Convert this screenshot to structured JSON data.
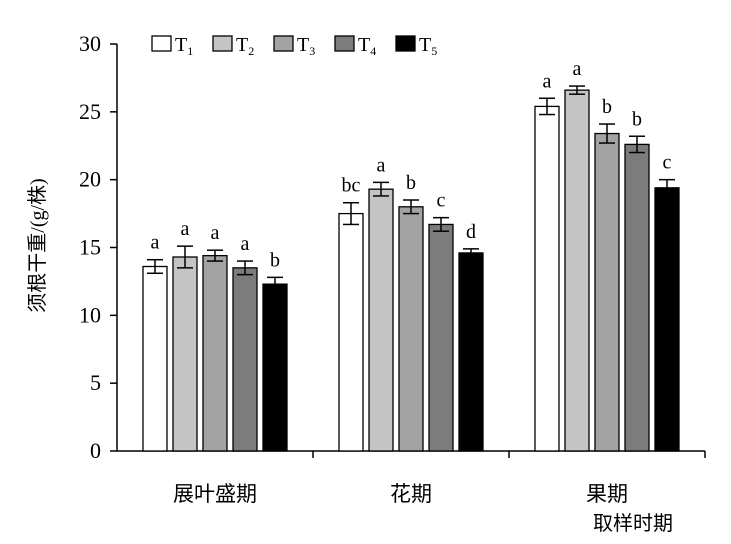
{
  "chart_data": {
    "type": "bar",
    "ylabel": "须根干重/(g/株)",
    "xlabel": "取样时期",
    "ylim": [
      0,
      30
    ],
    "yticks": [
      0,
      5,
      10,
      15,
      20,
      25,
      30
    ],
    "categories": [
      "展叶盛期",
      "花期",
      "果期"
    ],
    "legend_position": "top-left",
    "series": [
      {
        "name": "T1",
        "base": "T",
        "sub": "1",
        "color": "#ffffff",
        "values": [
          13.6,
          17.5,
          25.4
        ],
        "errors": [
          0.5,
          0.8,
          0.6
        ],
        "letters": [
          "a",
          "bc",
          "a"
        ]
      },
      {
        "name": "T2",
        "base": "T",
        "sub": "2",
        "color": "#c4c4c4",
        "values": [
          14.3,
          19.3,
          26.6
        ],
        "errors": [
          0.8,
          0.5,
          0.3
        ],
        "letters": [
          "a",
          "a",
          "a"
        ]
      },
      {
        "name": "T3",
        "base": "T",
        "sub": "3",
        "color": "#a3a3a3",
        "values": [
          14.4,
          18.0,
          23.4
        ],
        "errors": [
          0.4,
          0.5,
          0.7
        ],
        "letters": [
          "a",
          "b",
          "b"
        ]
      },
      {
        "name": "T4",
        "base": "T",
        "sub": "4",
        "color": "#7c7c7c",
        "values": [
          13.5,
          16.7,
          22.6
        ],
        "errors": [
          0.5,
          0.5,
          0.6
        ],
        "letters": [
          "a",
          "c",
          "b"
        ]
      },
      {
        "name": "T5",
        "base": "T",
        "sub": "5",
        "color": "#000000",
        "values": [
          12.3,
          14.6,
          19.4
        ],
        "errors": [
          0.5,
          0.3,
          0.6
        ],
        "letters": [
          "b",
          "d",
          "c"
        ]
      }
    ]
  }
}
